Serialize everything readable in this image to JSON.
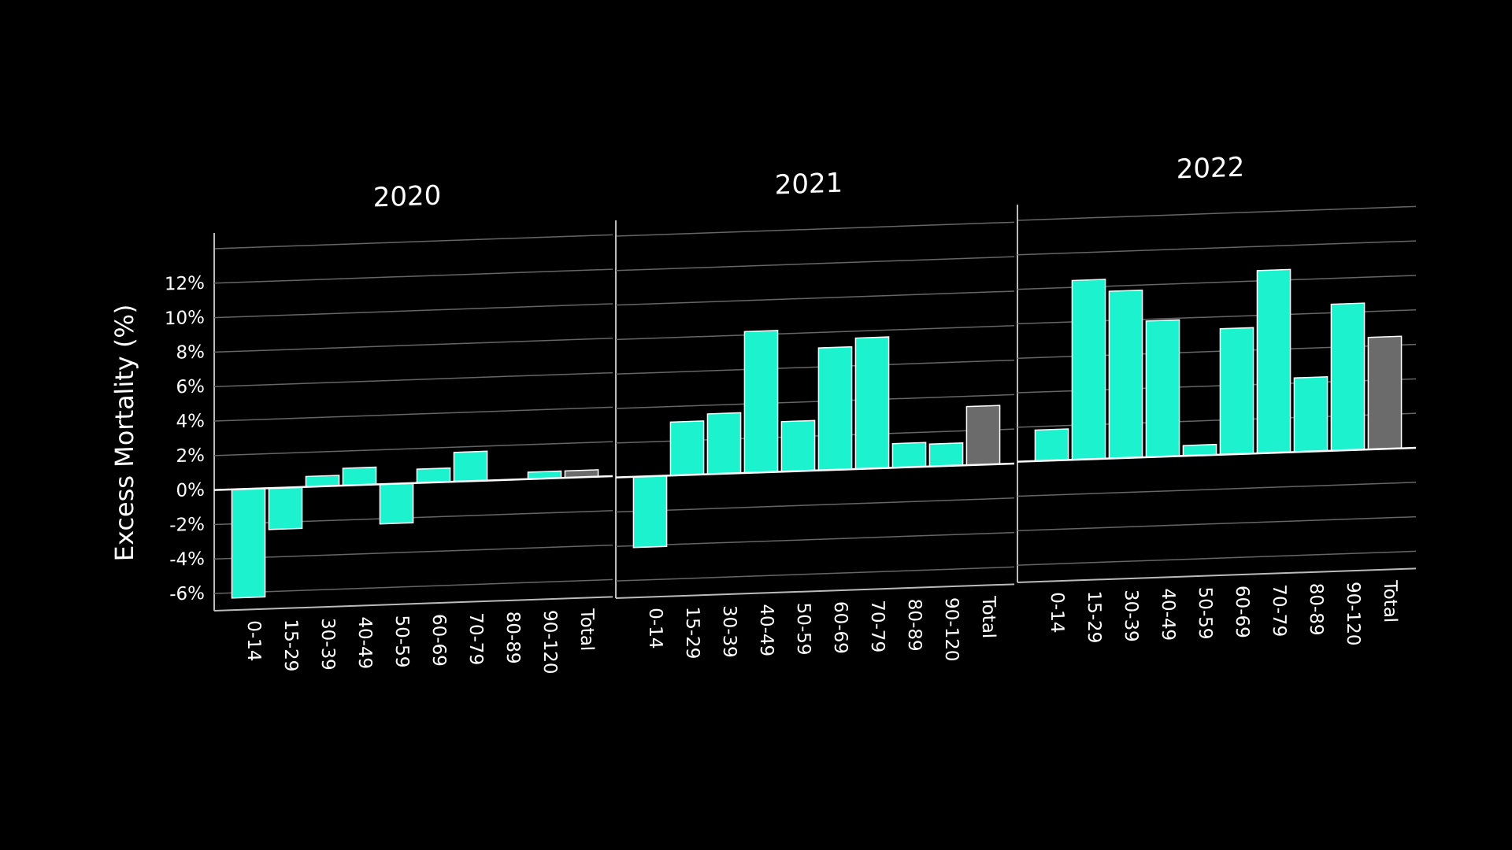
{
  "chart_data": [
    {
      "type": "bar",
      "title": "2020",
      "ylabel": "Excess Mortality (%)",
      "categories": [
        "0-14",
        "15-29",
        "30-39",
        "40-49",
        "50-59",
        "60-69",
        "70-79",
        "80-89",
        "90-120",
        "Total"
      ],
      "values": [
        -6.3,
        -2.4,
        0.6,
        1.0,
        -2.3,
        0.8,
        1.7,
        0,
        0.4,
        0.4
      ],
      "colors": [
        "#1cf2cd",
        "#1cf2cd",
        "#1cf2cd",
        "#1cf2cd",
        "#1cf2cd",
        "#1cf2cd",
        "#1cf2cd",
        "#1cf2cd",
        "#1cf2cd",
        "#6b6b6b"
      ],
      "ylim": [
        -7,
        14
      ],
      "yticks": [
        {
          "value": -6,
          "label": "-6%"
        },
        {
          "value": -4,
          "label": "-4%"
        },
        {
          "value": -2,
          "label": "-2%"
        },
        {
          "value": 0,
          "label": "0%"
        },
        {
          "value": 2,
          "label": "2%"
        },
        {
          "value": 4,
          "label": "4%"
        },
        {
          "value": 6,
          "label": "6%"
        },
        {
          "value": 8,
          "label": "8%"
        },
        {
          "value": 10,
          "label": "10%"
        },
        {
          "value": 12,
          "label": "12%"
        }
      ],
      "grid": true
    },
    {
      "type": "bar",
      "title": "2021",
      "categories": [
        "0-14",
        "15-29",
        "30-39",
        "40-49",
        "50-59",
        "60-69",
        "70-79",
        "80-89",
        "90-120",
        "Total"
      ],
      "values": [
        -4.1,
        3.1,
        3.5,
        8.2,
        2.9,
        7.1,
        7.6,
        1.4,
        1.3,
        3.4
      ],
      "colors": [
        "#1cf2cd",
        "#1cf2cd",
        "#1cf2cd",
        "#1cf2cd",
        "#1cf2cd",
        "#1cf2cd",
        "#1cf2cd",
        "#1cf2cd",
        "#1cf2cd",
        "#6b6b6b"
      ],
      "ylim": [
        -7,
        14
      ],
      "yticks": [
        -6,
        -4,
        -2,
        0,
        2,
        4,
        6,
        8,
        10,
        12
      ],
      "grid": true
    },
    {
      "type": "bar",
      "title": "2022",
      "categories": [
        "0-14",
        "15-29",
        "30-39",
        "40-49",
        "50-59",
        "60-69",
        "70-79",
        "80-89",
        "90-120",
        "Total"
      ],
      "values": [
        1.8,
        10.4,
        9.7,
        7.9,
        0.6,
        7.3,
        10.6,
        4.3,
        8.5,
        6.5
      ],
      "colors": [
        "#1cf2cd",
        "#1cf2cd",
        "#1cf2cd",
        "#1cf2cd",
        "#1cf2cd",
        "#1cf2cd",
        "#1cf2cd",
        "#1cf2cd",
        "#1cf2cd",
        "#6b6b6b"
      ],
      "ylim": [
        -7,
        14
      ],
      "yticks": [
        -6,
        -4,
        -2,
        0,
        2,
        4,
        6,
        8,
        10,
        12
      ],
      "grid": true
    }
  ]
}
